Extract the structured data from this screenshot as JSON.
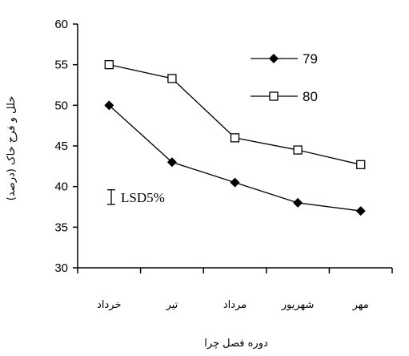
{
  "chart_data": {
    "type": "line",
    "categories": [
      "خرداد",
      "تیر",
      "مرداد",
      "شهریور",
      "مهر"
    ],
    "series": [
      {
        "name": "79",
        "marker": "filled-diamond",
        "color": "#000000",
        "values": [
          50,
          43,
          40.5,
          38,
          37
        ]
      },
      {
        "name": "80",
        "marker": "open-square",
        "color": "#000000",
        "values": [
          55,
          53.3,
          46,
          44.5,
          42.7
        ]
      }
    ],
    "ylim": [
      30,
      60
    ],
    "yticks": [
      30,
      35,
      40,
      45,
      50,
      55,
      60
    ],
    "ylabel": "خلل و فرج خاک (درصد)",
    "xlabel": "دوره فصل چرا",
    "lsd": {
      "label": "LSD5%",
      "value": 1.8,
      "center": 38.7
    },
    "legend_position": "top-right",
    "grid": false
  }
}
